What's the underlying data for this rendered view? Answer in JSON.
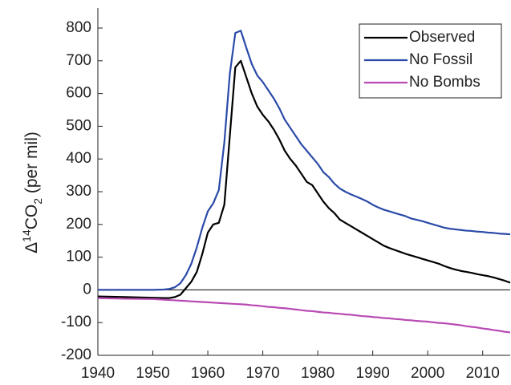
{
  "chart_data": {
    "type": "line",
    "ylabel": [
      "Δ",
      "14",
      "CO",
      "2",
      " (per mil)"
    ],
    "x": [
      1940,
      1945,
      1950,
      1952,
      1953,
      1954,
      1955,
      1956,
      1957,
      1958,
      1959,
      1960,
      1961,
      1962,
      1963,
      1964,
      1965,
      1966,
      1967,
      1968,
      1969,
      1970,
      1971,
      1972,
      1973,
      1974,
      1975,
      1976,
      1977,
      1978,
      1979,
      1980,
      1981,
      1982,
      1983,
      1984,
      1985,
      1986,
      1987,
      1988,
      1989,
      1990,
      1991,
      1992,
      1993,
      1994,
      1995,
      1996,
      1997,
      1998,
      1999,
      2000,
      2001,
      2002,
      2003,
      2004,
      2005,
      2006,
      2007,
      2008,
      2009,
      2010,
      2011,
      2012,
      2013,
      2014,
      2015
    ],
    "series": [
      {
        "name": "Observed",
        "color": "#000000",
        "values": [
          -20,
          -22,
          -24,
          -25,
          -25,
          -22,
          -15,
          5,
          25,
          55,
          110,
          175,
          200,
          205,
          260,
          470,
          680,
          700,
          650,
          600,
          560,
          535,
          515,
          490,
          460,
          425,
          400,
          380,
          355,
          330,
          320,
          295,
          270,
          250,
          235,
          215,
          205,
          195,
          185,
          175,
          165,
          155,
          145,
          135,
          128,
          122,
          116,
          110,
          105,
          100,
          95,
          90,
          85,
          80,
          73,
          67,
          62,
          58,
          55,
          52,
          48,
          45,
          42,
          38,
          33,
          28,
          22
        ]
      },
      {
        "name": "No Fossil",
        "color": "#2b4aa8",
        "values": [
          0,
          0,
          0,
          1,
          3,
          8,
          20,
          45,
          80,
          130,
          190,
          240,
          265,
          305,
          450,
          660,
          785,
          792,
          740,
          690,
          655,
          635,
          610,
          585,
          555,
          520,
          495,
          470,
          445,
          425,
          405,
          385,
          360,
          345,
          325,
          310,
          300,
          292,
          285,
          278,
          270,
          260,
          252,
          245,
          240,
          235,
          230,
          225,
          218,
          214,
          210,
          205,
          200,
          195,
          190,
          187,
          185,
          183,
          181,
          180,
          178,
          177,
          175,
          174,
          172,
          171,
          170
        ]
      },
      {
        "name": "No Bombs",
        "color": "#b94ab4",
        "values": [
          -25,
          -27,
          -28,
          -30,
          -31,
          -32,
          -33,
          -34,
          -35,
          -36,
          -37,
          -38,
          -39,
          -40,
          -41,
          -42,
          -43,
          -44,
          -45,
          -47,
          -48,
          -50,
          -52,
          -53,
          -55,
          -56,
          -58,
          -60,
          -62,
          -64,
          -65,
          -67,
          -69,
          -70,
          -72,
          -73,
          -75,
          -76,
          -78,
          -80,
          -81,
          -83,
          -84,
          -86,
          -87,
          -89,
          -90,
          -92,
          -93,
          -95,
          -96,
          -97,
          -99,
          -101,
          -102,
          -104,
          -106,
          -108,
          -111,
          -113,
          -115,
          -118,
          -120,
          -123,
          -125,
          -128,
          -130
        ]
      }
    ],
    "xlim": [
      1940,
      2015
    ],
    "xticks": [
      1940,
      1950,
      1960,
      1970,
      1980,
      1990,
      2000,
      2010
    ],
    "ylim": [
      -200,
      800
    ],
    "yticks": [
      -200,
      -100,
      0,
      100,
      200,
      300,
      400,
      500,
      600,
      700,
      800
    ],
    "hline": 0,
    "legend": "upper right"
  }
}
